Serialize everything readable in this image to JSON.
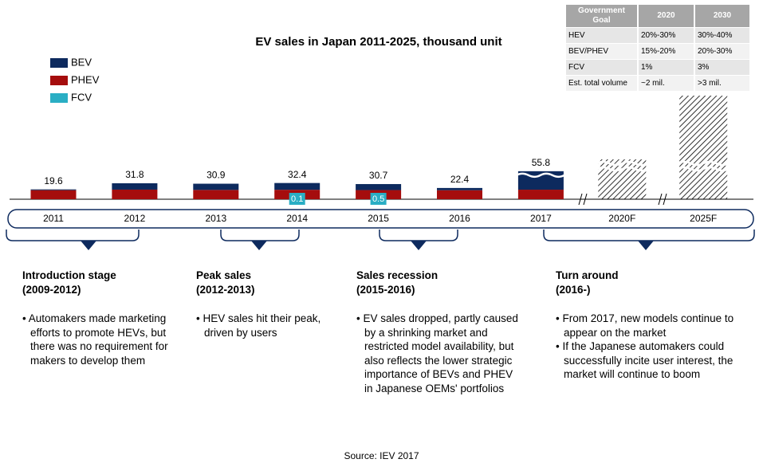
{
  "chart_data": {
    "type": "stacked-bar",
    "title": "EV sales in Japan 2011-2025, thousand unit",
    "categories": [
      "2011",
      "2012",
      "2013",
      "2014",
      "2015",
      "2016",
      "2017",
      "2020F",
      "2025F"
    ],
    "series": [
      {
        "name": "BEV",
        "color": "#0d2a5e",
        "values": [
          1.6,
          12.7,
          12.4,
          13.5,
          12,
          4.5,
          36.8,
          null,
          null
        ]
      },
      {
        "name": "PHEV",
        "color": "#a50d0d",
        "values": [
          18,
          19.1,
          18.5,
          18.8,
          18.2,
          17.9,
          19,
          null,
          null
        ]
      },
      {
        "name": "FCV",
        "color": "#2aaec4",
        "values": [
          null,
          null,
          null,
          0.1,
          0.5,
          null,
          null,
          null,
          null
        ]
      }
    ],
    "totals": [
      19.6,
      31.8,
      30.9,
      32.4,
      30.7,
      22.4,
      55.8,
      null,
      null
    ]
  },
  "table": {
    "header": [
      "Government Goal",
      "2020",
      "2030"
    ],
    "rows": [
      [
        "HEV",
        "20%-30%",
        "30%-40%"
      ],
      [
        "BEV/PHEV",
        "15%-20%",
        "20%-30%"
      ],
      [
        "FCV",
        "1%",
        "3%"
      ],
      [
        "Est. total volume",
        "~2 mil.",
        ">3 mil."
      ]
    ]
  },
  "stages": [
    {
      "title": "Introduction stage",
      "period": "(2009-2012)",
      "bullets": [
        "Automakers made marketing efforts to promote HEVs, but there was no requirement for makers to develop them"
      ]
    },
    {
      "title": "Peak sales",
      "period": "(2012-2013)",
      "bullets": [
        "HEV sales hit their peak, driven by users"
      ]
    },
    {
      "title": "Sales recession",
      "period": "(2015-2016)",
      "bullets": [
        "EV sales dropped, partly caused by a shrinking market and restricted model availability, but also reflects the lower strategic importance of BEVs and PHEV in Japanese OEMs' portfolios"
      ]
    },
    {
      "title": "Turn around",
      "period": "(2016-)",
      "bullets": [
        "From 2017, new models continue to appear  on the market",
        "If  the Japanese automakers could successfully incite user interest, the market will continue to boom"
      ]
    }
  ],
  "source": "Source: IEV 2017"
}
